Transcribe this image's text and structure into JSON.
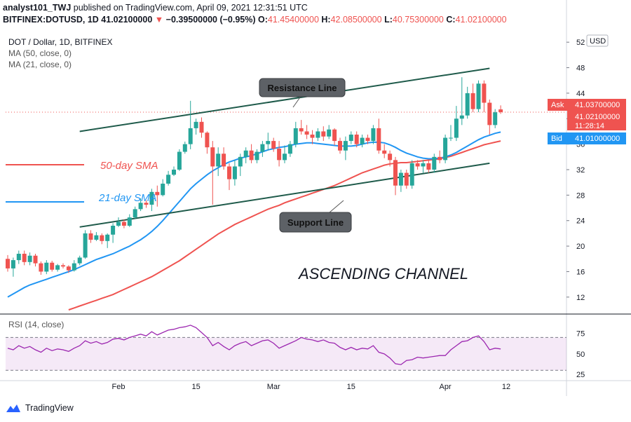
{
  "header": {
    "publisher": "analyst101_TWJ",
    "published_text": "published on TradingView.com, April 09, 2021 12:31:51 UTC",
    "symbol_line": "BITFINEX:DOTUSD, 1D",
    "last": "41.02100000",
    "change": "−0.39500000 (−0.95%)",
    "o_label": "O:",
    "o": "41.45400000",
    "h_label": "H:",
    "h": "42.08500000",
    "l_label": "L:",
    "l": "40.75300000",
    "c_label": "C:",
    "c": "41.02100000"
  },
  "legend": {
    "pair": "DOT / Dollar, 1D, BITFINEX",
    "ma50": "MA (50, close, 0)",
    "ma21": "MA (21, close, 0)",
    "currency_badge": "USD"
  },
  "price_labels": {
    "ask_label": "Ask",
    "ask": "41.03700000",
    "last": "41.02100000",
    "countdown": "11:28:14",
    "bid_label": "Bid",
    "bid": "41.01000000"
  },
  "annotations": {
    "resistance": "Resistance Line",
    "support": "Support Line",
    "sma50": "50-day SMA",
    "sma21": "21-day SMA",
    "title": "ASCENDING CHANNEL"
  },
  "rsi_label": "RSI (14, close)",
  "footer": {
    "brand": "TradingView"
  },
  "colors": {
    "up": "#26a69a",
    "down": "#ef5350",
    "ma21": "#2196f3",
    "ma50": "#ef5350",
    "channel": "#1e5a4a",
    "rsi": "#9c27b0"
  },
  "chart_data": {
    "type": "candlestick",
    "y_ticks": [
      12,
      16,
      20,
      24,
      28,
      32,
      36,
      40,
      44,
      48,
      52
    ],
    "ylim": [
      10,
      54
    ],
    "x_ticks": [
      {
        "label": "Feb",
        "i": 20
      },
      {
        "label": "15",
        "i": 34
      },
      {
        "label": "Mar",
        "i": 48
      },
      {
        "label": "15",
        "i": 62
      },
      {
        "label": "Apr",
        "i": 79
      },
      {
        "label": "12",
        "i": 90
      }
    ],
    "candles": [
      [
        18.0,
        16.5,
        18.6,
        16.0
      ],
      [
        16.5,
        17.8,
        18.2,
        15.2
      ],
      [
        17.8,
        18.8,
        19.3,
        17.2
      ],
      [
        18.8,
        17.5,
        19.3,
        17.0
      ],
      [
        17.5,
        18.5,
        19.0,
        17.0
      ],
      [
        18.5,
        17.3,
        18.8,
        16.8
      ],
      [
        17.3,
        16.0,
        17.6,
        15.5
      ],
      [
        16.0,
        17.4,
        17.8,
        15.6
      ],
      [
        17.4,
        16.3,
        17.7,
        16.0
      ],
      [
        16.3,
        17.0,
        17.2,
        16.0
      ],
      [
        17.0,
        16.8,
        17.3,
        16.5
      ],
      [
        16.8,
        16.2,
        17.0,
        15.8
      ],
      [
        16.2,
        17.3,
        17.8,
        16.0
      ],
      [
        17.3,
        18.2,
        18.5,
        17.0
      ],
      [
        18.2,
        22.0,
        22.5,
        18.0
      ],
      [
        22.0,
        21.0,
        22.5,
        20.5
      ],
      [
        21.0,
        21.7,
        22.2,
        20.8
      ],
      [
        21.7,
        20.8,
        22.0,
        20.3
      ],
      [
        20.8,
        21.8,
        22.0,
        19.7
      ],
      [
        21.8,
        23.2,
        23.6,
        20.5
      ],
      [
        23.2,
        23.8,
        24.5,
        23.0
      ],
      [
        23.8,
        23.2,
        24.2,
        22.8
      ],
      [
        23.2,
        24.5,
        25.0,
        23.0
      ],
      [
        24.5,
        25.8,
        26.2,
        24.3
      ],
      [
        25.8,
        26.8,
        27.5,
        25.5
      ],
      [
        26.8,
        26.5,
        27.2,
        26.0
      ],
      [
        26.5,
        28.5,
        29.0,
        25.5
      ],
      [
        28.5,
        28.0,
        29.5,
        26.2
      ],
      [
        28.0,
        29.8,
        30.5,
        27.8
      ],
      [
        29.8,
        31.2,
        31.8,
        29.5
      ],
      [
        31.2,
        32.0,
        32.5,
        31.0
      ],
      [
        32.0,
        34.8,
        35.2,
        31.8
      ],
      [
        34.8,
        36.0,
        36.4,
        34.5
      ],
      [
        36.0,
        38.5,
        42.8,
        35.2
      ],
      [
        38.5,
        39.5,
        40.0,
        37.5
      ],
      [
        39.5,
        37.8,
        40.2,
        37.0
      ],
      [
        37.8,
        35.5,
        38.0,
        34.5
      ],
      [
        35.5,
        32.5,
        36.5,
        26.5
      ],
      [
        32.5,
        34.5,
        35.5,
        31.0
      ],
      [
        34.5,
        32.5,
        35.5,
        32.0
      ],
      [
        32.5,
        30.5,
        33.0,
        28.8
      ],
      [
        30.5,
        32.5,
        33.5,
        29.5
      ],
      [
        32.5,
        34.0,
        34.5,
        31.0
      ],
      [
        34.0,
        35.0,
        35.5,
        33.0
      ],
      [
        35.0,
        33.5,
        36.0,
        33.0
      ],
      [
        33.5,
        34.8,
        35.2,
        33.0
      ],
      [
        34.8,
        36.0,
        36.5,
        34.0
      ],
      [
        36.0,
        36.5,
        37.8,
        35.0
      ],
      [
        36.5,
        35.3,
        37.0,
        34.8
      ],
      [
        35.3,
        33.5,
        36.5,
        32.5
      ],
      [
        33.5,
        34.5,
        35.8,
        33.0
      ],
      [
        34.5,
        36.0,
        36.5,
        34.0
      ],
      [
        36.0,
        38.5,
        39.5,
        35.5
      ],
      [
        38.5,
        38.0,
        39.8,
        37.5
      ],
      [
        38.0,
        37.5,
        39.0,
        36.8
      ],
      [
        37.5,
        37.0,
        38.2,
        36.0
      ],
      [
        37.0,
        38.0,
        38.5,
        36.5
      ],
      [
        38.0,
        37.2,
        38.8,
        36.5
      ],
      [
        37.2,
        38.3,
        39.0,
        36.8
      ],
      [
        38.3,
        36.5,
        38.5,
        35.8
      ],
      [
        36.5,
        35.0,
        37.0,
        34.5
      ],
      [
        35.0,
        36.5,
        37.2,
        33.5
      ],
      [
        36.5,
        37.5,
        38.0,
        36.0
      ],
      [
        37.5,
        36.0,
        38.0,
        35.5
      ],
      [
        36.0,
        37.0,
        37.5,
        35.5
      ],
      [
        37.0,
        36.5,
        37.5,
        36.0
      ],
      [
        36.5,
        38.5,
        39.0,
        36.0
      ],
      [
        38.5,
        35.0,
        40.0,
        34.5
      ],
      [
        35.0,
        34.5,
        36.0,
        33.8
      ],
      [
        34.5,
        33.5,
        35.0,
        32.5
      ],
      [
        33.5,
        29.5,
        34.0,
        28.0
      ],
      [
        29.5,
        31.5,
        32.0,
        28.5
      ],
      [
        31.5,
        29.5,
        32.0,
        29.0
      ],
      [
        29.5,
        33.0,
        33.5,
        29.0
      ],
      [
        33.0,
        32.5,
        33.5,
        32.0
      ],
      [
        32.5,
        33.0,
        33.5,
        31.5
      ],
      [
        33.0,
        32.0,
        33.5,
        31.5
      ],
      [
        32.0,
        34.0,
        34.5,
        31.5
      ],
      [
        34.0,
        33.5,
        35.0,
        33.0
      ],
      [
        33.5,
        37.0,
        37.5,
        33.0
      ],
      [
        37.0,
        37.0,
        39.0,
        36.5
      ],
      [
        37.0,
        40.0,
        42.0,
        36.5
      ],
      [
        40.0,
        40.5,
        46.5,
        39.0
      ],
      [
        40.5,
        44.0,
        45.0,
        40.0
      ],
      [
        44.0,
        41.5,
        45.5,
        41.0
      ],
      [
        41.5,
        45.5,
        46.0,
        41.0
      ],
      [
        45.5,
        42.5,
        46.0,
        41.0
      ],
      [
        42.5,
        39.0,
        43.0,
        37.5
      ],
      [
        39.0,
        41.0,
        41.5,
        38.5
      ],
      [
        41.454,
        41.021,
        42.085,
        40.753
      ]
    ],
    "ma21": [
      12.0,
      12.5,
      13.0,
      13.5,
      13.9,
      14.2,
      14.5,
      14.8,
      15.1,
      15.4,
      15.7,
      16.0,
      16.3,
      16.7,
      17.1,
      17.5,
      17.9,
      18.2,
      18.5,
      18.8,
      19.2,
      19.6,
      20.0,
      20.5,
      21.0,
      21.6,
      22.3,
      23.1,
      24.0,
      25.0,
      26.0,
      27.0,
      28.0,
      29.0,
      29.8,
      30.5,
      31.2,
      31.8,
      32.3,
      32.8,
      33.2,
      33.5,
      33.8,
      34.0,
      34.2,
      34.5,
      34.8,
      35.1,
      35.3,
      35.5,
      35.6,
      35.8,
      36.0,
      36.1,
      36.2,
      36.2,
      36.1,
      36.0,
      35.9,
      35.8,
      35.7,
      35.7,
      35.7,
      35.8,
      36.0,
      36.2,
      36.3,
      36.3,
      36.2,
      35.9,
      35.5,
      35.0,
      34.6,
      34.3,
      34.0,
      33.8,
      33.7,
      33.7,
      33.8,
      34.0,
      34.3,
      34.7,
      35.2,
      35.7,
      36.2,
      36.7,
      37.1,
      37.4,
      37.7,
      37.9
    ],
    "ma50": [
      null,
      null,
      null,
      null,
      null,
      null,
      null,
      null,
      null,
      null,
      null,
      10.0,
      10.3,
      10.6,
      10.9,
      11.2,
      11.5,
      11.8,
      12.1,
      12.4,
      12.8,
      13.2,
      13.6,
      14.0,
      14.4,
      14.8,
      15.2,
      15.7,
      16.2,
      16.7,
      17.2,
      17.7,
      18.3,
      18.9,
      19.5,
      20.1,
      20.7,
      21.3,
      21.9,
      22.4,
      22.9,
      23.4,
      23.8,
      24.2,
      24.6,
      25.0,
      25.4,
      25.8,
      26.1,
      26.4,
      26.8,
      27.1,
      27.4,
      27.7,
      28.0,
      28.3,
      28.6,
      28.9,
      29.2,
      29.5,
      29.9,
      30.3,
      30.7,
      31.1,
      31.5,
      31.8,
      32.1,
      32.4,
      32.7,
      32.9,
      33.0,
      33.1,
      33.1,
      33.2,
      33.3,
      33.4,
      33.5,
      33.6,
      33.7,
      33.9,
      34.1,
      34.4,
      34.7,
      35.0,
      35.3,
      35.6,
      35.9,
      36.1,
      36.3,
      36.5
    ],
    "rsi": [
      57,
      55,
      60,
      57,
      59,
      55,
      52,
      57,
      54,
      56,
      55,
      53,
      57,
      60,
      66,
      63,
      65,
      62,
      64,
      68,
      69,
      67,
      70,
      72,
      74,
      72,
      77,
      73,
      76,
      79,
      80,
      82,
      83,
      85,
      82,
      76,
      70,
      60,
      64,
      59,
      55,
      60,
      63,
      65,
      60,
      63,
      66,
      67,
      63,
      57,
      60,
      63,
      66,
      70,
      68,
      67,
      65,
      67,
      64,
      63,
      58,
      55,
      58,
      55,
      57,
      56,
      60,
      52,
      50,
      45,
      38,
      37,
      42,
      43,
      46,
      45,
      46,
      47,
      48,
      48,
      55,
      60,
      65,
      66,
      70,
      72,
      65,
      55,
      57,
      56
    ],
    "rsi_ticks": [
      25,
      50,
      75
    ],
    "rsi_range": [
      20,
      90
    ],
    "channel_resistance": {
      "i1": 13,
      "v1": 38.0,
      "i2": 87,
      "v2": 47.9
    },
    "channel_support": {
      "i1": 13,
      "v1": 23.0,
      "i2": 87,
      "v2": 33.0
    }
  }
}
